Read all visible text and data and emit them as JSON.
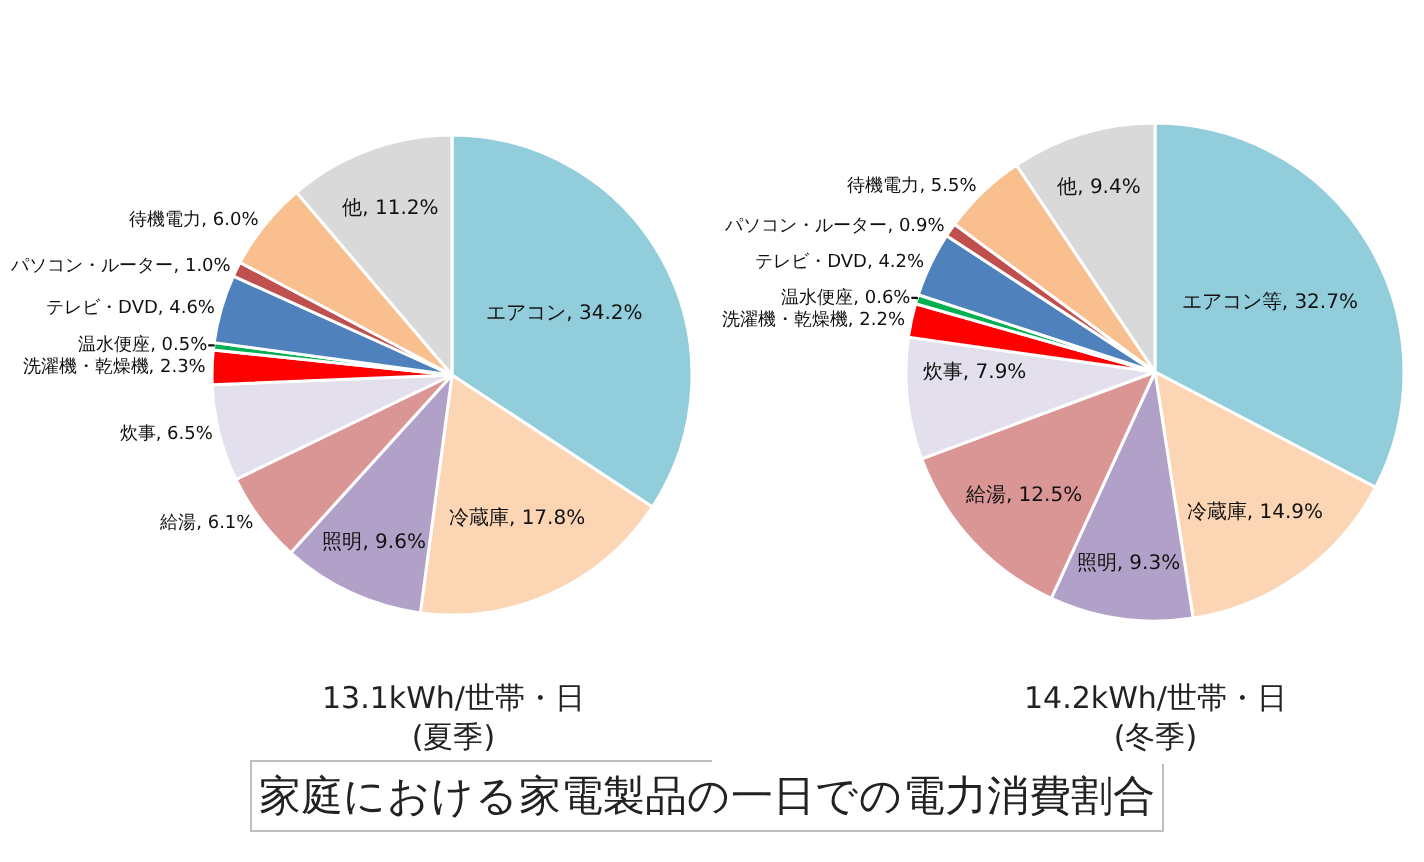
{
  "chart_data": [
    {
      "type": "pie",
      "title": "13.1kWh/世帯・日",
      "subtitle": "(夏季)",
      "annotations": [
        "家庭における家電製品の一日での電力消費割合"
      ],
      "categories": [
        "エアコン",
        "冷蔵庫",
        "照明",
        "給湯",
        "炊事",
        "洗濯機・乾燥機",
        "温水便座",
        "テレビ・DVD",
        "パソコン・ルーター",
        "待機電力",
        "他"
      ],
      "values": [
        34.2,
        17.8,
        9.6,
        6.1,
        6.5,
        2.3,
        0.5,
        4.6,
        1.0,
        6.0,
        11.2
      ],
      "value_labels": [
        "34.2%",
        "17.8%",
        "9.6%",
        "6.1%",
        "6.5%",
        "2.3%",
        "0.5%",
        "4.6%",
        "1.0%",
        "6.0%",
        "11.2%"
      ],
      "colors": [
        "#92cddc",
        "#fcd5b4",
        "#b1a0c7",
        "#da9694",
        "#e4dfec",
        "#ff0000",
        "#00b050",
        "#4f81bd",
        "#c0504d",
        "#fabf8f",
        "#d9d9d9"
      ],
      "legend": false
    },
    {
      "type": "pie",
      "title": "14.2kWh/世帯・日",
      "subtitle": "(冬季)",
      "categories": [
        "エアコン等",
        "冷蔵庫",
        "照明",
        "給湯",
        "炊事",
        "洗濯機・乾燥機",
        "温水便座",
        "テレビ・DVD",
        "パソコン・ルーター",
        "待機電力",
        "他"
      ],
      "values": [
        32.7,
        14.9,
        9.3,
        12.5,
        7.9,
        2.2,
        0.6,
        4.2,
        0.9,
        5.5,
        9.4
      ],
      "value_labels": [
        "32.7%",
        "14.9%",
        "9.3%",
        "12.5%",
        "7.9%",
        "2.2%",
        "0.6%",
        "4.2%",
        "0.9%",
        "5.5%",
        "9.4%"
      ],
      "colors": [
        "#92cddc",
        "#fcd5b4",
        "#b1a0c7",
        "#da9694",
        "#e4dfec",
        "#ff0000",
        "#00b050",
        "#4f81bd",
        "#c0504d",
        "#fabf8f",
        "#d9d9d9"
      ],
      "legend": false
    }
  ]
}
